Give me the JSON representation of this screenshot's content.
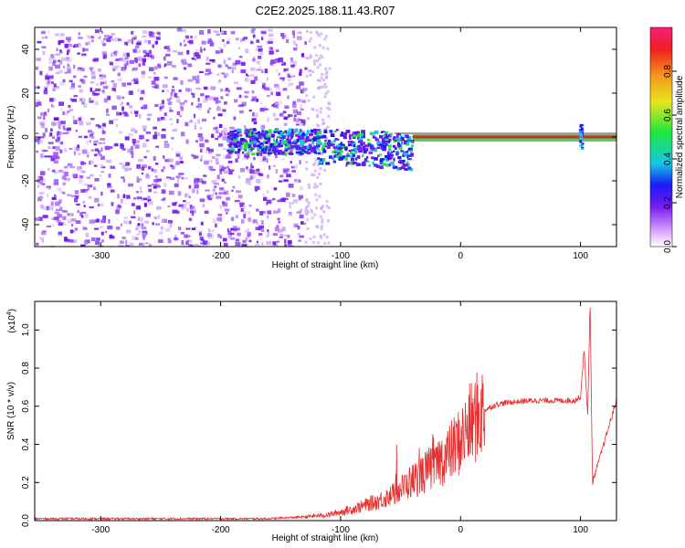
{
  "title": "C2E2.2025.188.11.43.R07",
  "colors": {
    "axis": "#000000",
    "snr_line": "#e53030",
    "spectrum_low": "#7b2cf0",
    "spectrum_mid": "#19c8e6",
    "spectrum_high": "#1ee63c",
    "spectrum_peak": "#e61e3c"
  },
  "chart_data": [
    {
      "type": "heatmap",
      "name": "spectrogram",
      "xlabel": "Height of straight line (km)",
      "ylabel": "Frequency (Hz)",
      "xlim": [
        -355,
        130
      ],
      "ylim": [
        -50,
        50
      ],
      "x_ticks": [
        -300,
        -200,
        -100,
        0,
        100
      ],
      "y_ticks": [
        -40,
        -20,
        0,
        20,
        40
      ],
      "colorbar": {
        "label": "Normalized spectral amplitude",
        "range": [
          0,
          1
        ],
        "ticks": [
          "0.0",
          "0.2",
          "0.4",
          "0.6",
          "0.8"
        ],
        "tick_values": [
          0,
          0.2,
          0.4,
          0.6,
          0.8
        ]
      },
      "regions": [
        {
          "x_start": -355,
          "x_end": -130,
          "freq_range": [
            -50,
            50
          ],
          "level": 0.2,
          "note": "broadband noise"
        },
        {
          "x_start": -195,
          "x_end": -40,
          "freq_range": [
            -12,
            4
          ],
          "level": 0.45
        },
        {
          "x_start": -40,
          "x_end": 130,
          "center_freq": 0,
          "level": 1.0
        }
      ],
      "spike": {
        "x": 100,
        "freq_range": [
          -5,
          6
        ],
        "level": 0.5
      }
    },
    {
      "type": "line",
      "name": "snr",
      "xlabel": "Height of straight line (km)",
      "ylabel": "SNR (10 * v/v)",
      "multiplier": "(x10",
      "multiplier_exp": "4",
      "xlim": [
        -355,
        130
      ],
      "ylim": [
        0,
        1.15
      ],
      "x_ticks": [
        -300,
        -200,
        -100,
        0,
        100
      ],
      "y_ticks": [
        0.0,
        0.2,
        0.4,
        0.6,
        0.8,
        1.0
      ],
      "y_tick_labels": [
        "0.0",
        "0.2",
        "0.4",
        "0.6",
        "0.8",
        "1.0"
      ],
      "envelope": {
        "x": [
          -355,
          -160,
          -130,
          -110,
          -90,
          -70,
          -55,
          -45,
          -30,
          -20,
          -10,
          0,
          10,
          20,
          30,
          40,
          60,
          80,
          95,
          100,
          103,
          106,
          108,
          110,
          130
        ],
        "y": [
          0.01,
          0.01,
          0.02,
          0.03,
          0.06,
          0.1,
          0.14,
          0.19,
          0.25,
          0.3,
          0.35,
          0.42,
          0.52,
          0.58,
          0.61,
          0.62,
          0.63,
          0.63,
          0.63,
          0.65,
          0.9,
          0.55,
          1.15,
          0.2,
          0.63
        ]
      }
    }
  ]
}
